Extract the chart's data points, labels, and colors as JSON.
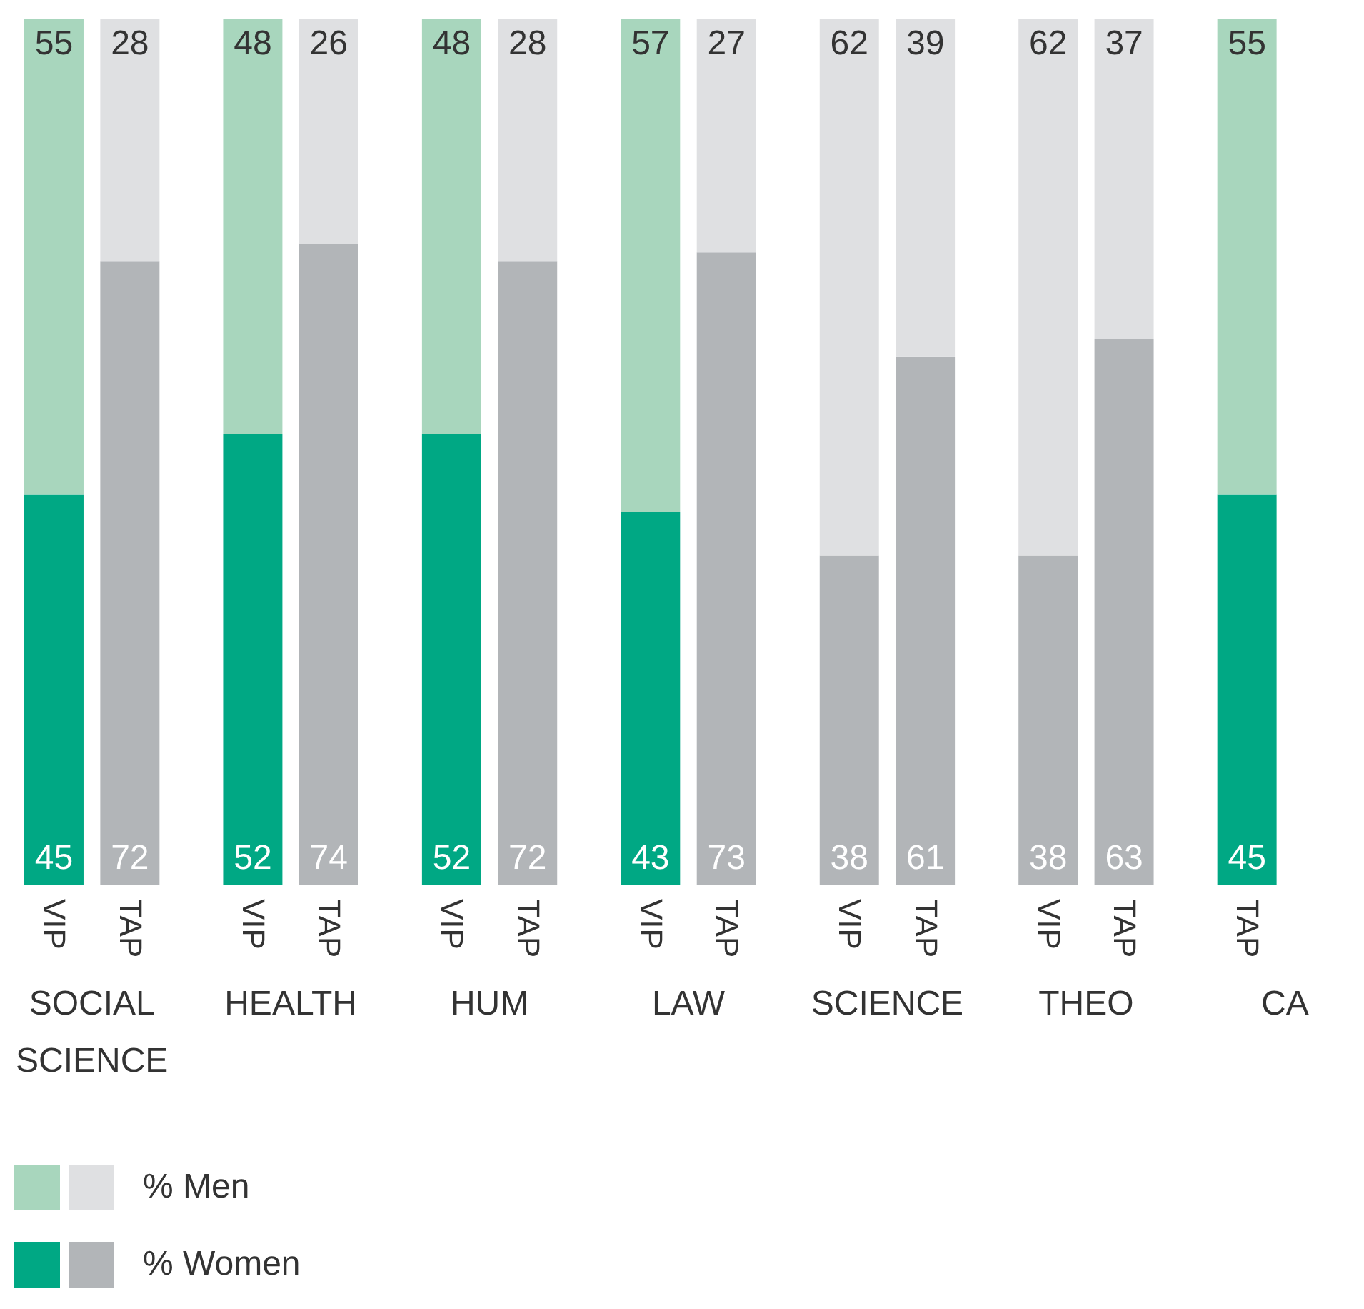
{
  "chart_data": {
    "type": "bar",
    "stacked": true,
    "data_labels": true,
    "legend": "bottom left",
    "categories": [
      "VIP",
      "TAP",
      "VIP",
      "TAP",
      "VIP",
      "TAP",
      "VIP",
      "TAP",
      "VIP",
      "TAP",
      "VIP",
      "TAP",
      "TAP"
    ],
    "annotations": [
      "SOCIAL SCIENCE",
      "HEALTH",
      "HUM",
      "LAW",
      "SCIENCE",
      "THEO",
      "CA"
    ],
    "series": [
      {
        "name": "% Women",
        "values": [
          45,
          72,
          52,
          74,
          52,
          72,
          43,
          73,
          38,
          61,
          38,
          63,
          45
        ],
        "colors": [
          "#00a884",
          "#b2b5b8",
          "#00a884",
          "#b2b5b8",
          "#00a884",
          "#b2b5b8",
          "#00a884",
          "#b2b5b8",
          "#b2b5b8",
          "#b2b5b8",
          "#b2b5b8",
          "#b2b5b8",
          "#00a884"
        ]
      },
      {
        "name": "% Men",
        "values": [
          55,
          28,
          48,
          26,
          48,
          28,
          57,
          27,
          62,
          39,
          62,
          37,
          55
        ],
        "colors": [
          "#a8d6bd",
          "#dfe0e2",
          "#a8d6bd",
          "#dfe0e2",
          "#a8d6bd",
          "#dfe0e2",
          "#a8d6bd",
          "#dfe0e2",
          "#dfe0e2",
          "#dfe0e2",
          "#dfe0e2",
          "#dfe0e2",
          "#a8d6bd"
        ]
      }
    ]
  }
}
